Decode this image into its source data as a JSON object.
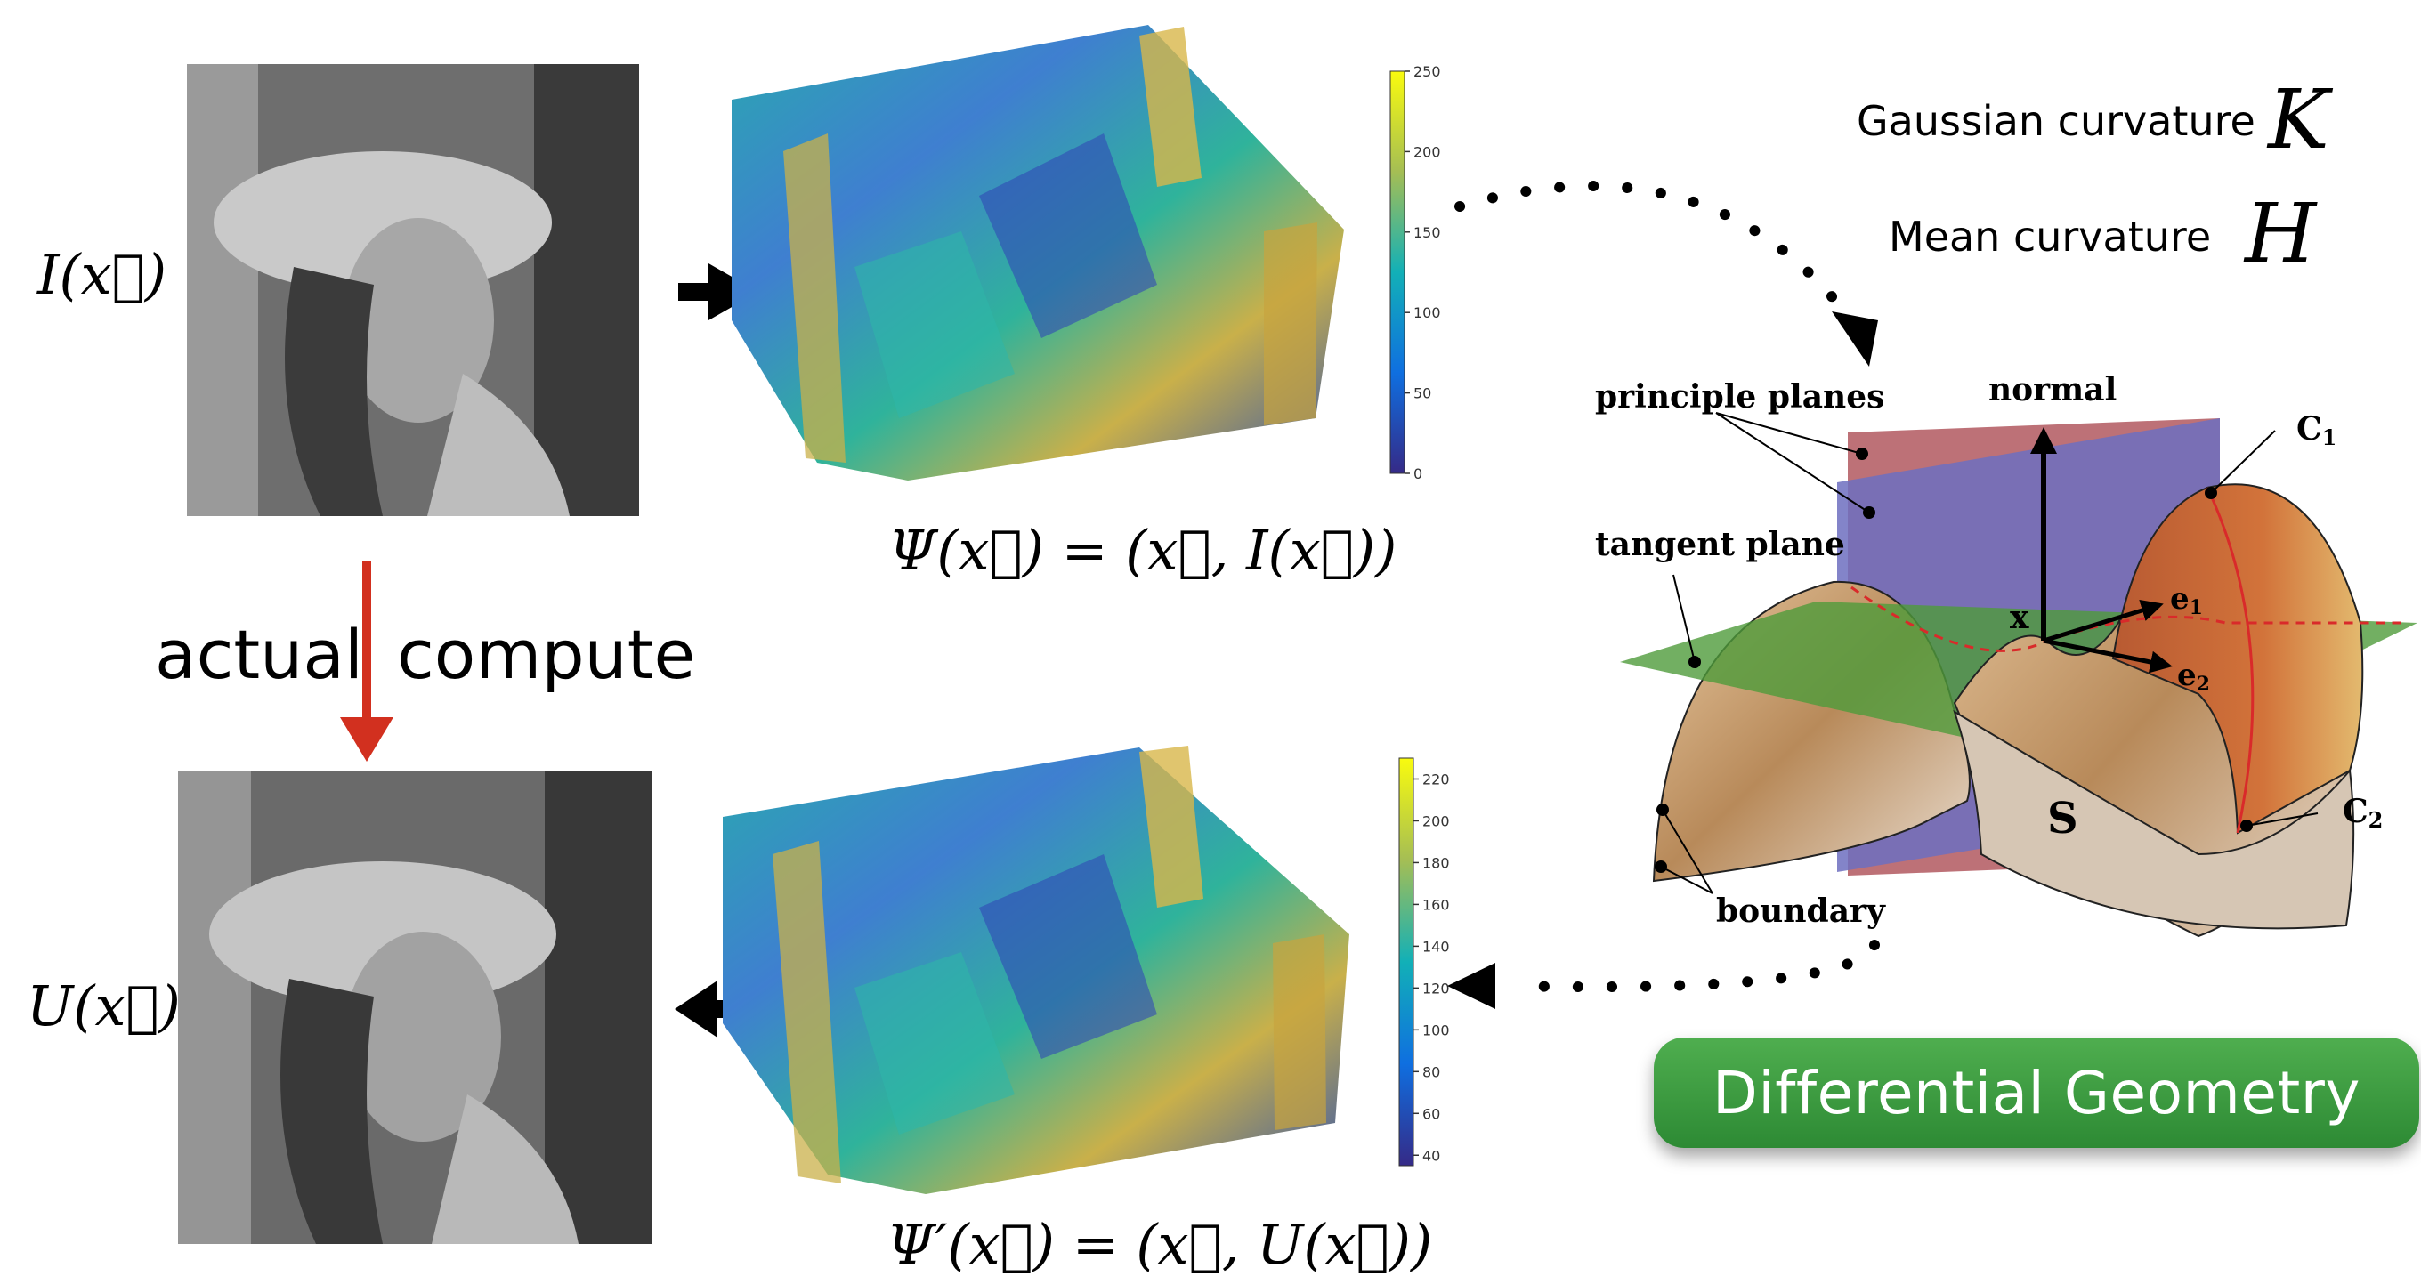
{
  "labels": {
    "input_image": "I(x⃗)",
    "output_image": "U(x⃗)",
    "psi": "Ψ(x⃗) = (x⃗, I(x⃗))",
    "psi_prime": "Ψ′(x⃗) = (x⃗, U(x⃗))",
    "actual": "actual",
    "compute": "compute"
  },
  "curvature": {
    "gaussian_label": "Gaussian curvature",
    "gaussian_symbol": "K",
    "mean_label": "Mean curvature",
    "mean_symbol": "H"
  },
  "surface_diagram": {
    "principle_planes": "principle planes",
    "normal": "normal",
    "tangent_plane": "tangent plane",
    "point": "x",
    "e1": "e",
    "e1_sub": "1",
    "e2": "e",
    "e2_sub": "2",
    "c1": "C",
    "c1_sub": "1",
    "c2": "C",
    "c2_sub": "2",
    "surface": "S",
    "boundary": "boundary"
  },
  "colorbar_top": {
    "ticks": [
      "250",
      "200",
      "150",
      "100",
      "50",
      "0"
    ],
    "range": [
      0,
      250
    ]
  },
  "colorbar_bottom": {
    "ticks": [
      "220",
      "200",
      "180",
      "160",
      "140",
      "120",
      "100",
      "80",
      "60",
      "40"
    ],
    "range": [
      35,
      230
    ]
  },
  "badge": "Differential Geometry",
  "colors": {
    "arrow_red": "#d2301f",
    "badge_green": "#3a9a3f",
    "plane_red": "#b2585f",
    "plane_blue": "#6d6fc0",
    "tangent_green": "#4f9b3b",
    "surface_tan": "#c9a47a"
  }
}
